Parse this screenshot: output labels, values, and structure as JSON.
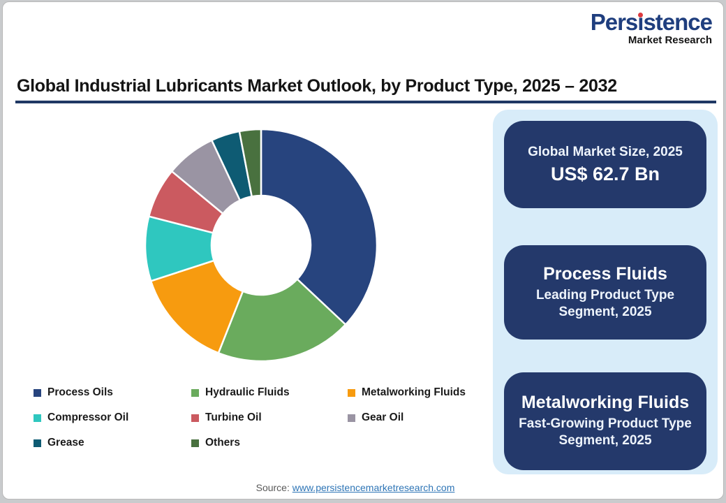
{
  "logo": {
    "name_pre": "Pers",
    "name_post": "stence",
    "subtitle": "Market Research",
    "brand_blue": "#1f3e7e",
    "dot_red": "#dd3a3e"
  },
  "header": {
    "title": "Global Industrial Lubricants Market Outlook, by Product Type, 2025 – 2032",
    "underline_color": "#1f3864"
  },
  "chart_data": {
    "type": "pie",
    "subtype": "donut",
    "title": "Global Industrial Lubricants Market Outlook, by Product Type, 2025 – 2032",
    "categories": [
      "Process Oils",
      "Hydraulic Fluids",
      "Metalworking Fluids",
      "Compressor Oil",
      "Turbine Oil",
      "Gear Oil",
      "Grease",
      "Others"
    ],
    "values": [
      37,
      19,
      14,
      9,
      7,
      7,
      4,
      3
    ],
    "unit": "% share (estimated from arc angles)",
    "colors": [
      "#27447e",
      "#6aab5d",
      "#f79b0f",
      "#2fc7bf",
      "#cb5a60",
      "#9a94a3",
      "#0e5b73",
      "#49713f"
    ],
    "start_angle_deg": 0,
    "direction": "clockwise",
    "donut_hole_ratio": 0.43,
    "legend_position": "bottom-left"
  },
  "panel": {
    "background": "#d8ecf9",
    "card_color": "#24396b",
    "cards": [
      {
        "line1": "Global Market Size, 2025",
        "line2": "US$ 62.7 Bn"
      },
      {
        "line1": "Process Fluids",
        "line2": "Leading Product Type Segment, 2025"
      },
      {
        "line1": "Metalworking Fluids",
        "line2": "Fast-Growing Product Type Segment, 2025"
      }
    ]
  },
  "footer": {
    "source_label": "Source:",
    "source_url": "www.persistencemarketresearch.com",
    "link_color": "#2e75b6"
  }
}
